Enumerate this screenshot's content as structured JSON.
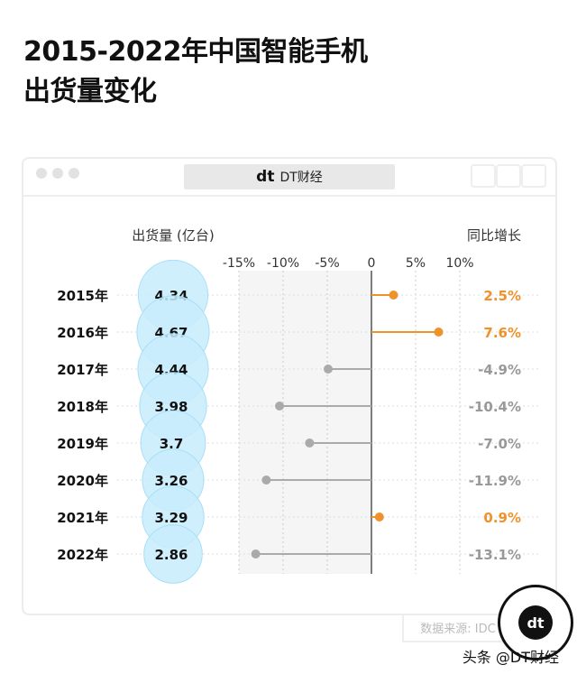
{
  "title_lines": [
    "2015-2022年中国智能手机",
    "出货量变化"
  ],
  "window": {
    "tab_label": "DT财经",
    "logo": "dt"
  },
  "source": "数据来源: IDC",
  "watermark": "头条 @DT财经",
  "badge_logo": "dt",
  "chart_data": {
    "type": "lollipop",
    "left_header": "出货量 (亿台)",
    "right_header": "同比增长",
    "categories": [
      "2015年",
      "2016年",
      "2017年",
      "2018年",
      "2019年",
      "2020年",
      "2021年",
      "2022年"
    ],
    "shipments": [
      4.34,
      4.67,
      4.44,
      3.98,
      3.7,
      3.26,
      3.29,
      2.86
    ],
    "growth": [
      2.5,
      7.6,
      -4.9,
      -10.4,
      -7.0,
      -11.9,
      0.9,
      -13.1
    ],
    "growth_labels": [
      "2.5%",
      "7.6%",
      "-4.9%",
      "-10.4%",
      "-7.0%",
      "-11.9%",
      "0.9%",
      "-13.1%"
    ],
    "x_ticks": [
      -15,
      -10,
      -5,
      0,
      5,
      10
    ],
    "x_tick_labels": [
      "-15%",
      "-10%",
      "-5%",
      "0",
      "5%",
      "10%"
    ],
    "xlim": [
      -15,
      10
    ],
    "colors": {
      "positive": "#f0922b",
      "negative": "#aaaaaa",
      "bubble": "#c8ecfb",
      "bubble_edge": "#a8dff7"
    }
  }
}
